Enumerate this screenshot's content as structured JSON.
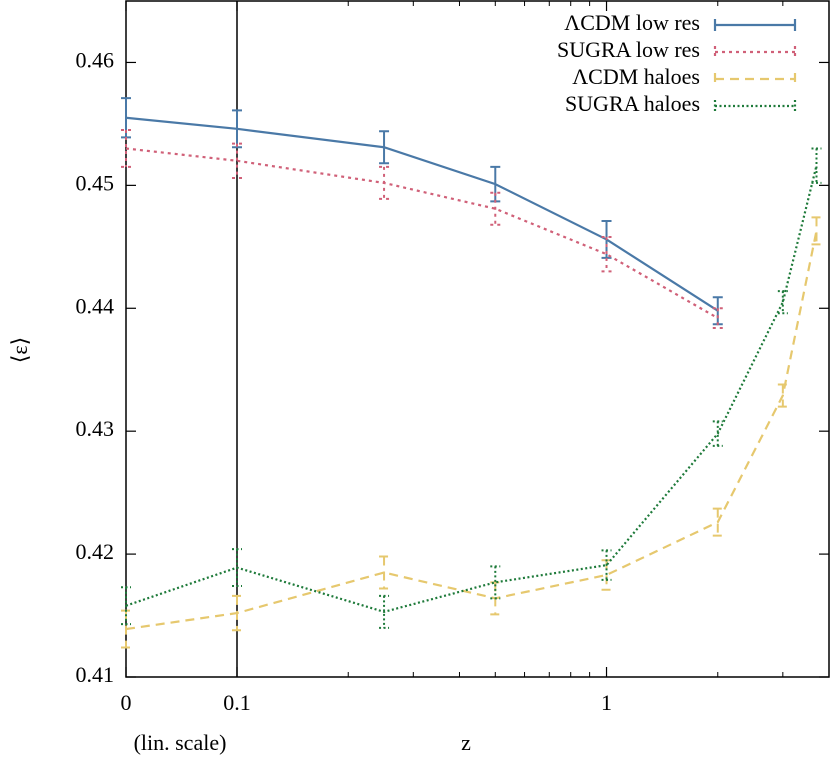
{
  "chart_data": {
    "type": "line",
    "xlabel": "z",
    "x_note": "(lin. scale)",
    "ylabel": "⟨ε⟩",
    "xlim_linear": [
      0,
      0.1
    ],
    "xlim_log": [
      0.1,
      4
    ],
    "xticks": [
      0,
      0.1,
      1
    ],
    "xminorticks": [
      0.2,
      0.3,
      0.4,
      0.5,
      0.6,
      0.7,
      0.8,
      0.9,
      2,
      3
    ],
    "ylim": [
      0.41,
      0.465
    ],
    "yticks": [
      0.41,
      0.42,
      0.43,
      0.44,
      0.45,
      0.46
    ],
    "legend": "upper right",
    "series": [
      {
        "name": "ΛCDM low res",
        "color": "#4a79a7",
        "dash": "solid",
        "x": [
          0,
          0.1,
          0.25,
          0.5,
          1,
          2
        ],
        "values": [
          0.4555,
          0.4546,
          0.4531,
          0.4501,
          0.4456,
          0.4398
        ],
        "errors": [
          0.0016,
          0.0015,
          0.0013,
          0.0014,
          0.0015,
          0.0011
        ]
      },
      {
        "name": "SUGRA low res",
        "color": "#d06078",
        "dash": "dotted",
        "x": [
          0,
          0.1,
          0.25,
          0.5,
          1,
          2
        ],
        "values": [
          0.453,
          0.452,
          0.4502,
          0.4481,
          0.4444,
          0.4392
        ],
        "errors": [
          0.0015,
          0.0014,
          0.0013,
          0.0013,
          0.0014,
          0.0008
        ]
      },
      {
        "name": "ΛCDM haloes",
        "color": "#e6c86e",
        "dash": "dashed",
        "x": [
          0,
          0.1,
          0.25,
          0.5,
          1,
          2,
          3,
          3.7
        ],
        "values": [
          0.4139,
          0.4152,
          0.4185,
          0.4164,
          0.4183,
          0.4226,
          0.4329,
          0.4463
        ],
        "errors": [
          0.0015,
          0.0014,
          0.0013,
          0.0013,
          0.0012,
          0.0011,
          0.0009,
          0.0011
        ]
      },
      {
        "name": "SUGRA haloes",
        "color": "#1e7a3a",
        "dash": "fine-dotted",
        "x": [
          0,
          0.1,
          0.25,
          0.5,
          1,
          2,
          3,
          3.7
        ],
        "values": [
          0.4158,
          0.4189,
          0.4153,
          0.4177,
          0.4191,
          0.4298,
          0.4405,
          0.4516
        ],
        "errors": [
          0.0015,
          0.0015,
          0.0013,
          0.0013,
          0.0012,
          0.001,
          0.0009,
          0.0014
        ]
      }
    ]
  }
}
